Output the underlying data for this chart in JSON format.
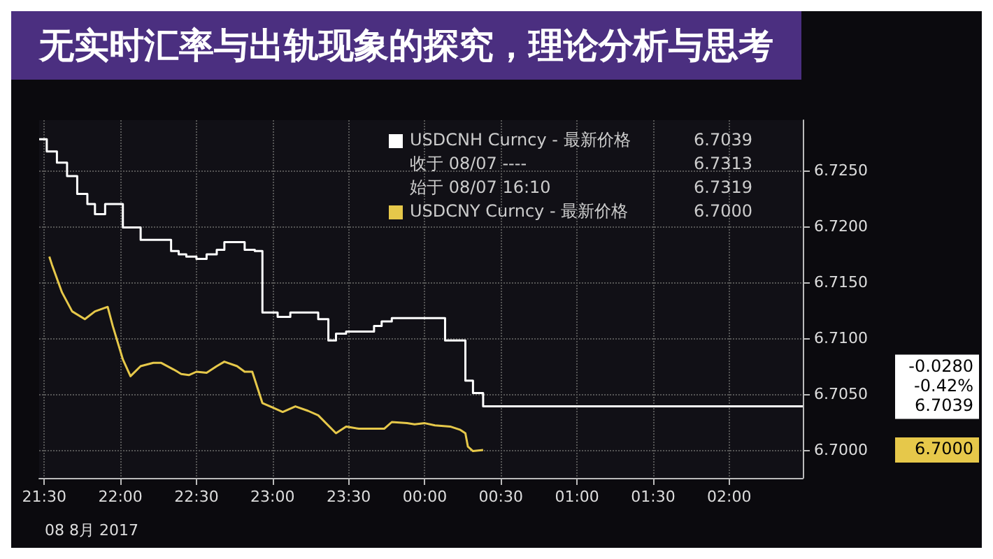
{
  "chart_data": {
    "type": "line",
    "title": "无实时汇率与出轨现象的探究，理论分析与思考",
    "xlim": [
      "2017-08-08T21:28",
      "2017-08-09T02:29"
    ],
    "ylim": [
      6.6975,
      6.7295
    ],
    "xticks": [
      {
        "value": "2017-08-08T21:30",
        "label": "21:30"
      },
      {
        "value": "2017-08-08T22:00",
        "label": "22:00"
      },
      {
        "value": "2017-08-08T22:30",
        "label": "22:30"
      },
      {
        "value": "2017-08-08T23:00",
        "label": "23:00"
      },
      {
        "value": "2017-08-08T23:30",
        "label": "23:30"
      },
      {
        "value": "2017-08-09T00:00",
        "label": "00:00"
      },
      {
        "value": "2017-08-09T00:30",
        "label": "00:30"
      },
      {
        "value": "2017-08-09T01:00",
        "label": "01:00"
      },
      {
        "value": "2017-08-09T01:30",
        "label": "01:30"
      },
      {
        "value": "2017-08-09T02:00",
        "label": "02:00"
      }
    ],
    "yticks": [
      {
        "value": 6.7,
        "label": "6.7000"
      },
      {
        "value": 6.705,
        "label": "6.7050"
      },
      {
        "value": 6.71,
        "label": "6.7100"
      },
      {
        "value": 6.715,
        "label": "6.7150"
      },
      {
        "value": 6.72,
        "label": "6.7200"
      },
      {
        "value": 6.725,
        "label": "6.7250"
      }
    ],
    "grid": true,
    "legend": "top right",
    "marker": "none",
    "line_style": "solid",
    "annotations": [
      "6.7039",
      "收于 08/07 ----",
      "6.7313",
      "始于 08/07 16:10",
      "6.7319",
      "6.7000",
      "6.7039",
      "-0.0280",
      "-0.42%",
      "6.7000",
      "08 8月 2017"
    ],
    "series": [
      {
        "name": "USDCNH Curncy - 最新价格",
        "type": "step",
        "color": "#ffffff",
        "x": [
          "2017-08-08T21:28",
          "2017-08-08T21:31",
          "2017-08-08T21:35",
          "2017-08-08T21:39",
          "2017-08-08T21:43",
          "2017-08-08T21:47",
          "2017-08-08T21:50",
          "2017-08-08T21:54",
          "2017-08-08T22:01",
          "2017-08-08T22:08",
          "2017-08-08T22:20",
          "2017-08-08T22:23",
          "2017-08-08T22:26",
          "2017-08-08T22:30",
          "2017-08-08T22:34",
          "2017-08-08T22:38",
          "2017-08-08T22:41",
          "2017-08-08T22:49",
          "2017-08-08T22:53",
          "2017-08-08T22:56",
          "2017-08-08T23:02",
          "2017-08-08T23:07",
          "2017-08-08T23:18",
          "2017-08-08T23:22",
          "2017-08-08T23:25",
          "2017-08-08T23:29",
          "2017-08-08T23:40",
          "2017-08-08T23:43",
          "2017-08-08T23:47",
          "2017-08-09T00:08",
          "2017-08-09T00:16",
          "2017-08-09T00:19",
          "2017-08-09T00:23",
          "2017-08-09T02:29"
        ],
        "values": [
          6.7278,
          6.7267,
          6.7257,
          6.7245,
          6.7229,
          6.722,
          6.7211,
          6.722,
          6.7199,
          6.7188,
          6.7178,
          6.7175,
          6.7173,
          6.7171,
          6.7175,
          6.7179,
          6.7186,
          6.7179,
          6.7178,
          6.7123,
          6.7119,
          6.7123,
          6.7117,
          6.7098,
          6.7104,
          6.7106,
          6.7111,
          6.7115,
          6.7118,
          6.7098,
          6.7062,
          6.7051,
          6.7039,
          6.7039
        ]
      },
      {
        "name": "USDCNY Curncy - 最新价格",
        "color": "#e6c84a",
        "x": [
          "2017-08-08T21:32",
          "2017-08-08T21:33",
          "2017-08-08T21:37",
          "2017-08-08T21:41",
          "2017-08-08T21:46",
          "2017-08-08T21:50",
          "2017-08-08T21:55",
          "2017-08-08T21:57",
          "2017-08-08T22:01",
          "2017-08-08T22:04",
          "2017-08-08T22:08",
          "2017-08-08T22:13",
          "2017-08-08T22:16",
          "2017-08-08T22:21",
          "2017-08-08T22:24",
          "2017-08-08T22:27",
          "2017-08-08T22:30",
          "2017-08-08T22:34",
          "2017-08-08T22:38",
          "2017-08-08T22:41",
          "2017-08-08T22:46",
          "2017-08-08T22:49",
          "2017-08-08T22:52",
          "2017-08-08T22:56",
          "2017-08-08T23:00",
          "2017-08-08T23:04",
          "2017-08-08T23:09",
          "2017-08-08T23:14",
          "2017-08-08T23:18",
          "2017-08-08T23:25",
          "2017-08-08T23:29",
          "2017-08-08T23:34",
          "2017-08-08T23:41",
          "2017-08-08T23:44",
          "2017-08-08T23:47",
          "2017-08-08T23:53",
          "2017-08-08T23:56",
          "2017-08-09T00:00",
          "2017-08-09T00:04",
          "2017-08-09T00:10",
          "2017-08-09T00:14",
          "2017-08-09T00:16",
          "2017-08-09T00:17",
          "2017-08-09T00:19",
          "2017-08-09T00:23"
        ],
        "values": [
          6.7173,
          6.7166,
          6.7141,
          6.7124,
          6.7117,
          6.7124,
          6.7128,
          6.7111,
          6.7081,
          6.7066,
          6.7075,
          6.7078,
          6.7078,
          6.7072,
          6.7068,
          6.7067,
          6.707,
          6.7069,
          6.7075,
          6.7079,
          6.7075,
          6.707,
          6.707,
          6.7042,
          6.7038,
          6.7034,
          6.7039,
          6.7035,
          6.7031,
          6.7015,
          6.7021,
          6.7019,
          6.7019,
          6.7019,
          6.7025,
          6.7024,
          6.7023,
          6.7024,
          6.7022,
          6.7021,
          6.7018,
          6.7015,
          6.7003,
          6.6999,
          6.7
        ]
      }
    ]
  }
}
